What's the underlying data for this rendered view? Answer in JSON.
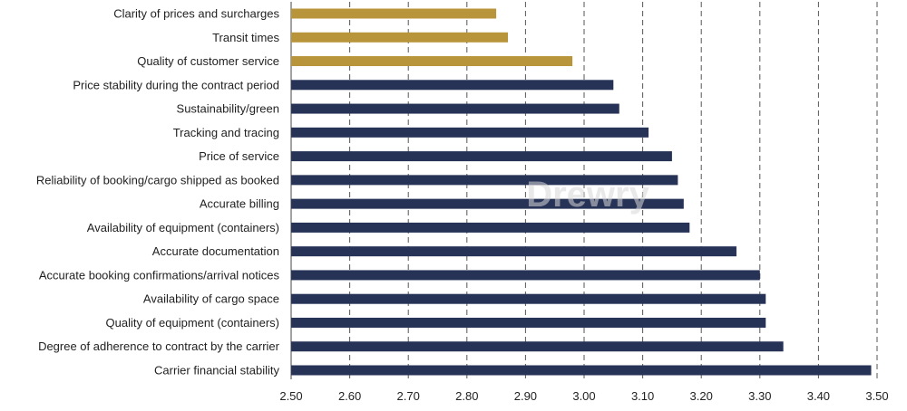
{
  "chart_data": {
    "type": "bar",
    "orientation": "horizontal",
    "title": "",
    "xlabel": "",
    "ylabel": "",
    "xlim": [
      2.5,
      3.5
    ],
    "ticks": [
      "2.50",
      "2.60",
      "2.70",
      "2.80",
      "2.90",
      "3.00",
      "3.10",
      "3.20",
      "3.30",
      "3.40",
      "3.50"
    ],
    "grid": "vertical dashed",
    "categories": [
      "Clarity of prices and surcharges",
      "Transit times",
      "Quality of customer service",
      "Price stability during the contract period",
      "Sustainability/green",
      "Tracking and tracing",
      "Price of service",
      "Reliability of booking/cargo shipped as booked",
      "Accurate billing",
      "Availability of equipment (containers)",
      "Accurate documentation",
      "Accurate booking confirmations/arrival notices",
      "Availability of cargo space",
      "Quality of equipment (containers)",
      "Degree of adherence to contract by the carrier",
      "Carrier financial stability"
    ],
    "values": [
      2.85,
      2.87,
      2.98,
      3.05,
      3.06,
      3.11,
      3.15,
      3.16,
      3.17,
      3.18,
      3.26,
      3.3,
      3.31,
      3.31,
      3.34,
      3.49
    ],
    "highlight_count": 3,
    "colors": {
      "highlight": "#b8943a",
      "default": "#263357"
    },
    "watermark": "Drewry"
  }
}
